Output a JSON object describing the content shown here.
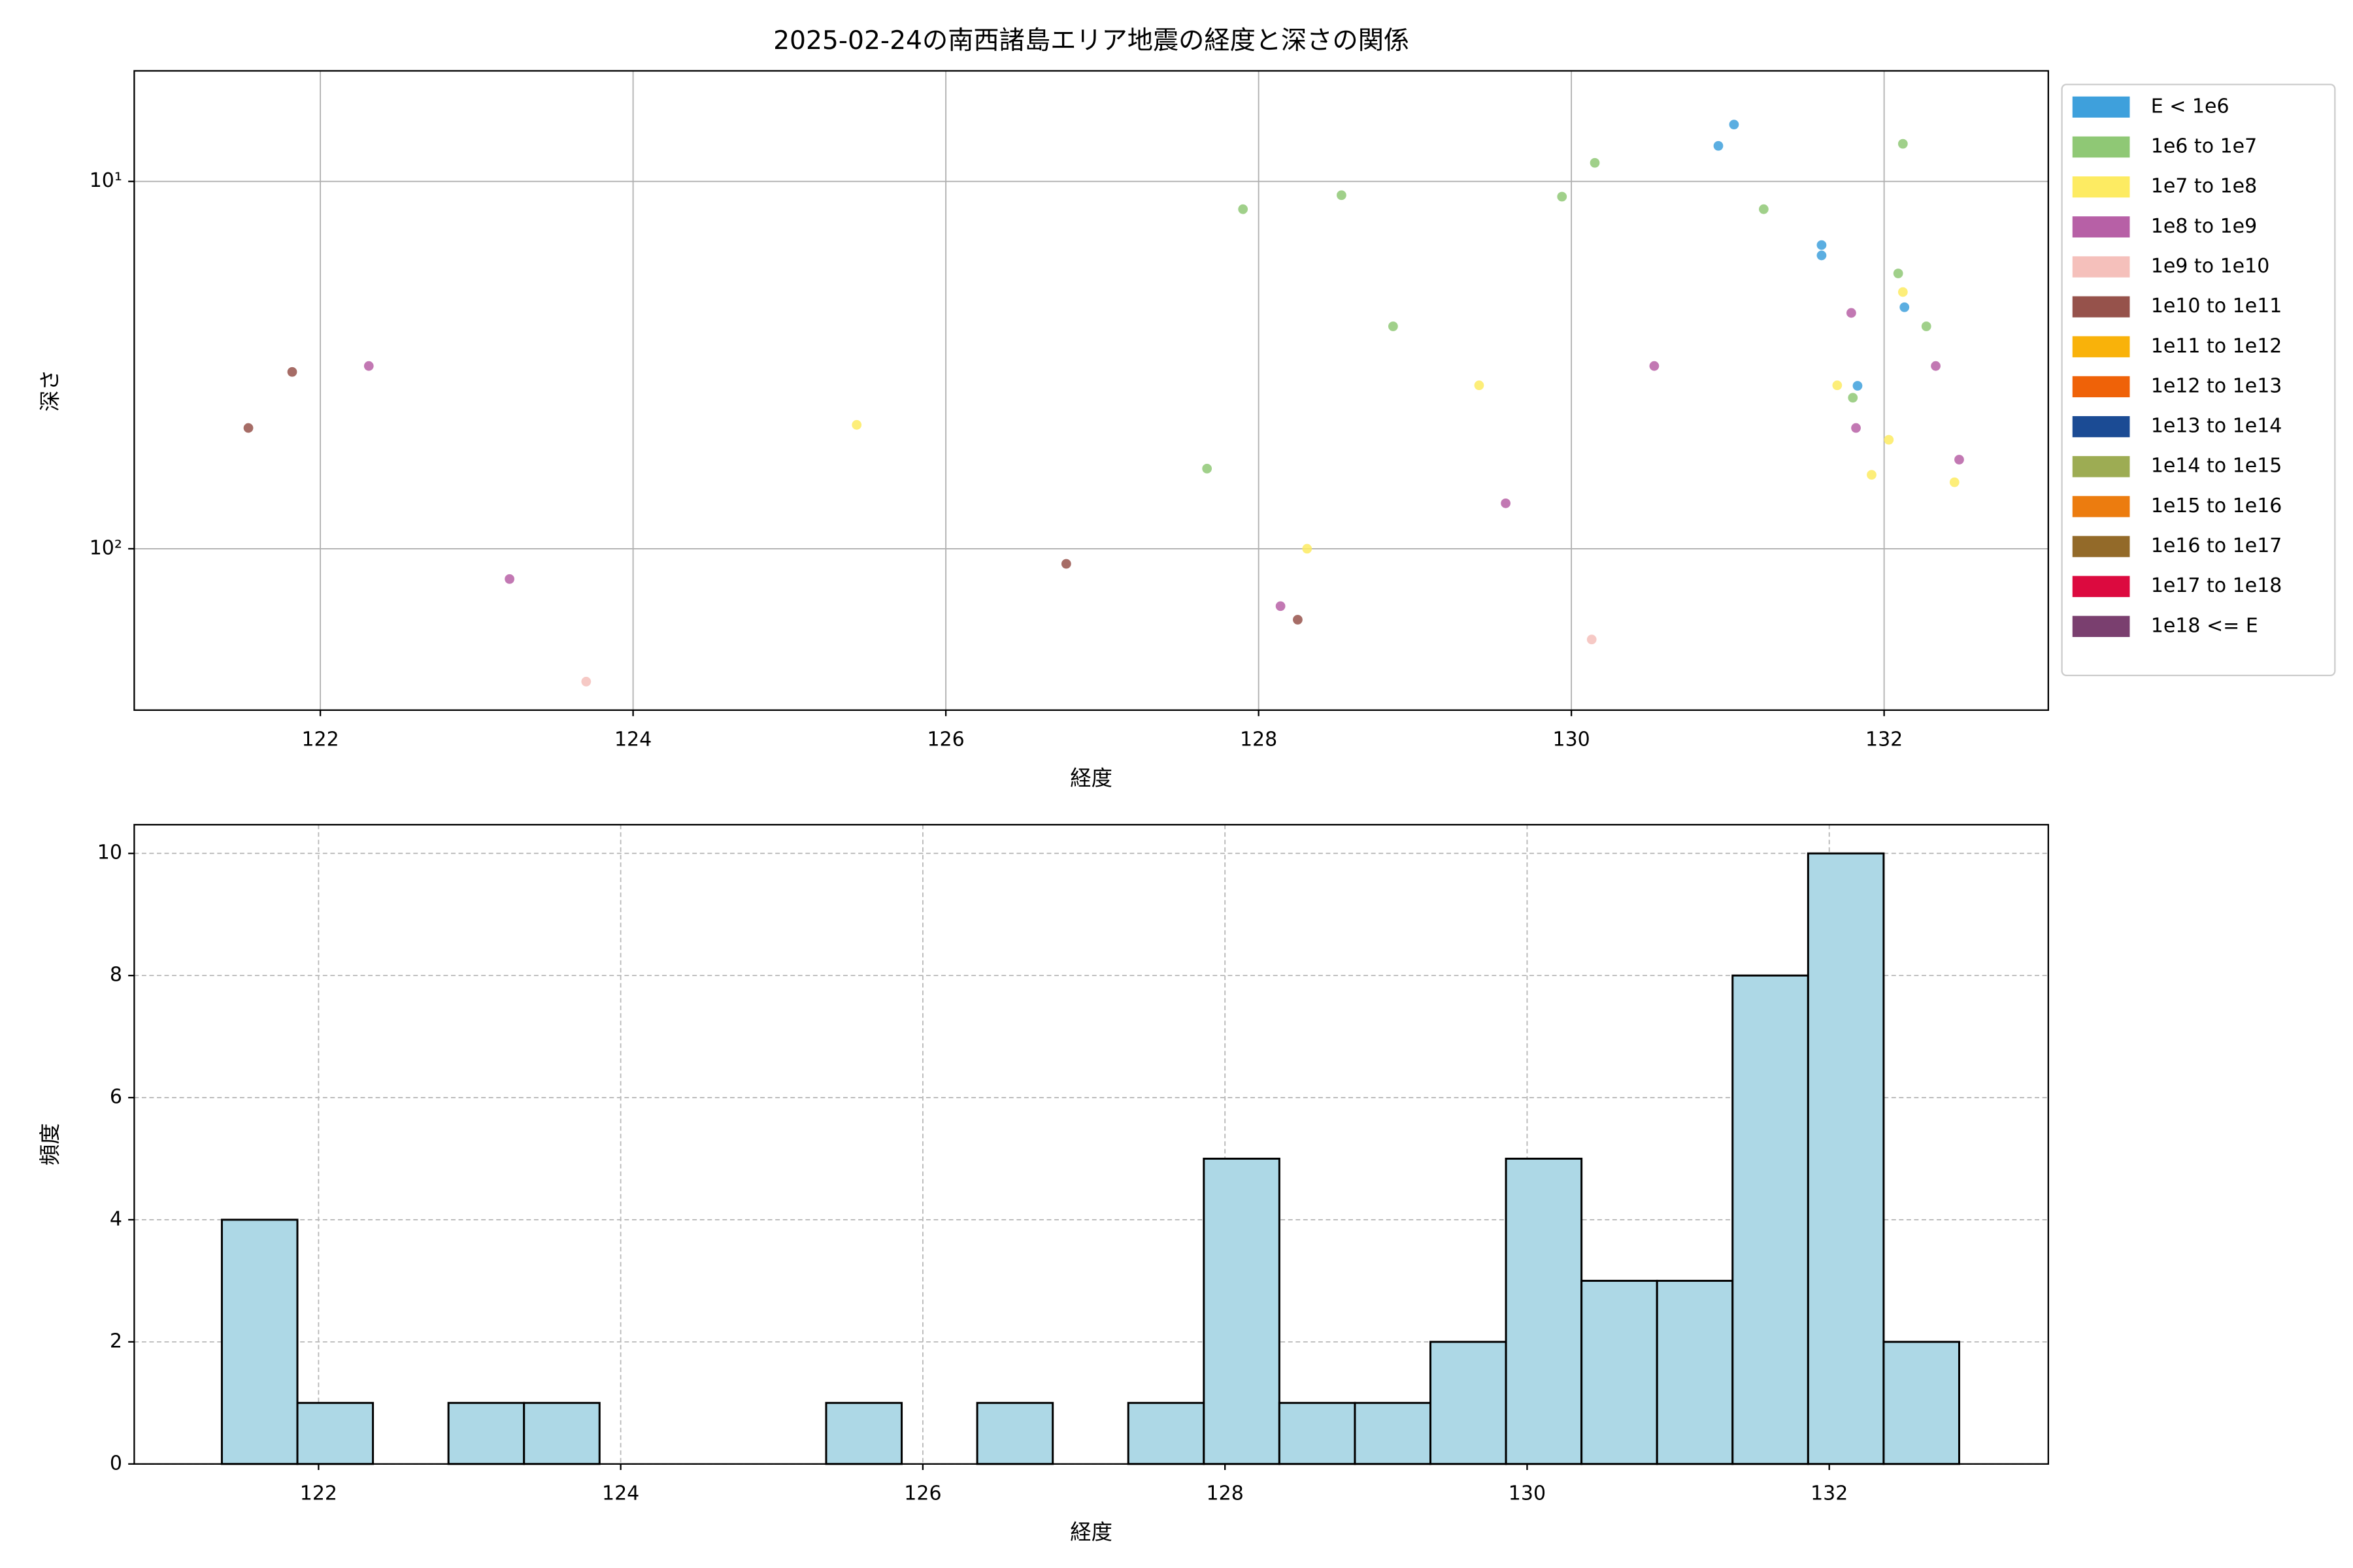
{
  "chart_data": [
    {
      "type": "scatter",
      "title": "2025-02-24の南西諸島エリア地震の経度と深さの関係",
      "xlabel": "経度",
      "ylabel": "深さ",
      "xlim": [
        120.81,
        133.05
      ],
      "xticks": [
        122,
        124,
        126,
        128,
        130,
        132
      ],
      "ylim": [
        275,
        5
      ],
      "yscale": "log",
      "yticks": [
        {
          "value": 10,
          "label": "10¹"
        },
        {
          "value": 100,
          "label": "10²"
        }
      ],
      "grid": true,
      "grid_linestyle": "solid",
      "legend": "right",
      "series": [
        {
          "name": "E < 1e6",
          "color": "#3ea0dc",
          "x": [
            130.94,
            131.04,
            131.6,
            131.6,
            132.13,
            131.83
          ],
          "values": [
            8.0,
            7.0,
            14.9,
            15.9,
            22.0,
            36
          ]
        },
        {
          "name": "1e6 to 1e7",
          "color": "#8fc875",
          "x": [
            127.9,
            128.53,
            130.15,
            129.94,
            131.23,
            132.12,
            132.09,
            128.86,
            132.27,
            131.8,
            127.67
          ],
          "values": [
            11.9,
            10.9,
            8.9,
            11.0,
            11.9,
            7.9,
            17.8,
            24.8,
            24.8,
            38.8,
            60.5
          ]
        },
        {
          "name": "1e7 to 1e8",
          "color": "#fdeb62",
          "x": [
            125.43,
            129.41,
            128.31,
            131.7,
            132.12,
            132.03,
            131.92,
            132.45
          ],
          "values": [
            46.0,
            35.9,
            100,
            35.9,
            20.0,
            50.5,
            62.9,
            65.9
          ]
        },
        {
          "name": "1e8 to 1e9",
          "color": "#b760a6",
          "x": [
            122.31,
            123.21,
            128.14,
            129.58,
            130.53,
            131.79,
            132.33,
            131.82,
            132.48
          ],
          "values": [
            31.8,
            120.9,
            143.3,
            75.2,
            31.8,
            22.8,
            31.8,
            46.9,
            57.2
          ]
        },
        {
          "name": "1e9 to 1e10",
          "color": "#f5c0bb",
          "x": [
            123.7,
            130.13
          ],
          "values": [
            230,
            176.6
          ]
        },
        {
          "name": "1e10 to 1e11",
          "color": "#96524b",
          "x": [
            121.54,
            121.82,
            126.77,
            128.25
          ],
          "values": [
            46.9,
            33.0,
            109.9,
            156
          ]
        },
        {
          "name": "1e11 to 1e12",
          "color": "#f9b20a",
          "x": [],
          "values": []
        },
        {
          "name": "1e12 to 1e13",
          "color": "#ef6208",
          "x": [],
          "values": []
        },
        {
          "name": "1e13 to 1e14",
          "color": "#1b4b94",
          "x": [],
          "values": []
        },
        {
          "name": "1e14 to 1e15",
          "color": "#9dac53",
          "x": [],
          "values": []
        },
        {
          "name": "1e15 to 1e16",
          "color": "#ec7c0f",
          "x": [],
          "values": []
        },
        {
          "name": "1e16 to 1e17",
          "color": "#936a29",
          "x": [],
          "values": []
        },
        {
          "name": "1e17 to 1e18",
          "color": "#dc0a3f",
          "x": [],
          "values": []
        },
        {
          "name": "1e18 <= E",
          "color": "#7a3f6f",
          "x": [],
          "values": []
        }
      ]
    },
    {
      "type": "histogram",
      "xlabel": "経度",
      "ylabel": "頻度",
      "xlim": [
        120.78,
        133.45
      ],
      "xticks": [
        122,
        124,
        126,
        128,
        130,
        132
      ],
      "ylim": [
        0,
        10.47
      ],
      "yticks": [
        0,
        2,
        4,
        6,
        8,
        10
      ],
      "grid": true,
      "grid_linestyle": "dashed",
      "color": "#add8e6",
      "edgecolor": "#000000",
      "bins": [
        121.36,
        121.86,
        122.36,
        122.86,
        123.36,
        123.86,
        124.36,
        124.86,
        125.36,
        125.86,
        126.36,
        126.86,
        127.36,
        127.86,
        128.36,
        128.86,
        129.36,
        129.86,
        130.36,
        130.86,
        131.36,
        131.86,
        132.36,
        132.86
      ],
      "values": [
        4,
        1,
        0,
        1,
        1,
        0,
        0,
        0,
        1,
        0,
        1,
        0,
        1,
        5,
        1,
        1,
        2,
        5,
        3,
        3,
        8,
        10,
        2
      ]
    }
  ]
}
